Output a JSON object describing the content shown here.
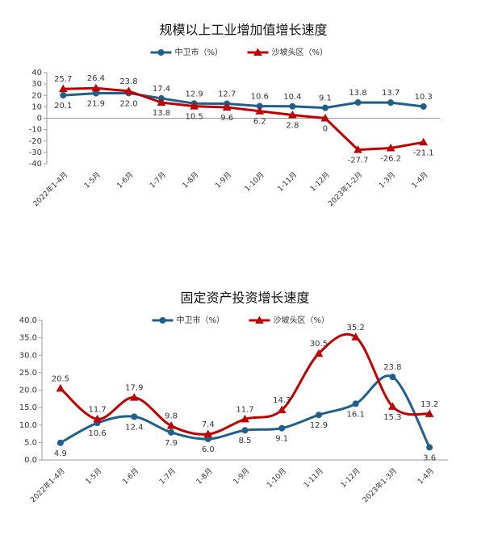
{
  "chart_data": [
    {
      "type": "line",
      "title": "规模以上工业增加值增长速度",
      "smooth": false,
      "categories": [
        "2022年1-4月",
        "1-5月",
        "1-6月",
        "1-7月",
        "1-8月",
        "1-9月",
        "1-10月",
        "1-11月",
        "1-12月",
        "2023年1-2月",
        "1-3月",
        "1-4月"
      ],
      "series": [
        {
          "name": "中卫市（%）",
          "color": "#1f5f8b",
          "marker": "circle",
          "values": [
            20.1,
            21.9,
            22.0,
            17.4,
            12.9,
            12.7,
            10.6,
            10.4,
            9.1,
            13.8,
            13.7,
            10.3
          ],
          "value_labels": [
            "20.1",
            "21.9",
            "22.0",
            "17.4",
            "12.9",
            "12.7",
            "10.6",
            "10.4",
            "9.1",
            "13.8",
            "13.7",
            "10.3"
          ]
        },
        {
          "name": "沙坡头区（%）",
          "color": "#c00000",
          "marker": "triangle",
          "values": [
            25.7,
            26.4,
            23.8,
            13.8,
            10.5,
            9.6,
            6.2,
            2.8,
            0,
            -27.7,
            -26.2,
            -21.1
          ],
          "value_labels": [
            "25.7",
            "26.4",
            "23.8",
            "13.8",
            "10.5",
            "9.6",
            "6.2",
            "2.8",
            "0",
            "-27.7",
            "-26.2",
            "-21.1"
          ]
        }
      ],
      "ylim": [
        -40,
        40
      ],
      "yticks": [
        -40,
        -30,
        -20,
        -10,
        0,
        10,
        20,
        30,
        40
      ],
      "grid": false
    },
    {
      "type": "line",
      "title": "固定资产投资增长速度",
      "smooth": true,
      "categories": [
        "2022年1-4月",
        "1-5月",
        "1-6月",
        "1-7月",
        "1-8月",
        "1-9月",
        "1-10月",
        "1-11月",
        "1-12月",
        "2023年1-3月",
        "1-4月"
      ],
      "series": [
        {
          "name": "中卫市（%）",
          "color": "#1f5f8b",
          "marker": "circle",
          "values": [
            4.9,
            10.6,
            12.4,
            7.9,
            6.0,
            8.5,
            9.1,
            12.9,
            16.1,
            23.8,
            3.6
          ],
          "value_labels": [
            "4.9",
            "10.6",
            "12.4",
            "7.9",
            "6.0",
            "8.5",
            "9.1",
            "12.9",
            "16.1",
            "23.8",
            "3.6"
          ]
        },
        {
          "name": "沙坡头区（%）",
          "color": "#c00000",
          "marker": "triangle",
          "values": [
            20.5,
            11.7,
            17.9,
            9.8,
            7.4,
            11.7,
            14.3,
            30.5,
            35.2,
            15.3,
            13.2
          ],
          "value_labels": [
            "20.5",
            "11.7",
            "17.9",
            "9.8",
            "7.4",
            "11.7",
            "14.3",
            "30.5",
            "35.2",
            "15.3",
            "13.2"
          ]
        }
      ],
      "ylim": [
        0,
        40
      ],
      "yticks": [
        {
          "value": 0,
          "label": "0.0"
        },
        {
          "value": 5,
          "label": "5.0"
        },
        {
          "value": 10,
          "label": "10.0"
        },
        {
          "value": 15,
          "label": "15.0"
        },
        {
          "value": 20,
          "label": "20.0"
        },
        {
          "value": 25,
          "label": "25.0"
        },
        {
          "value": 30,
          "label": "30.0"
        },
        {
          "value": 35,
          "label": "35.0"
        },
        {
          "value": 40,
          "label": "40.0"
        }
      ],
      "grid": false
    }
  ]
}
